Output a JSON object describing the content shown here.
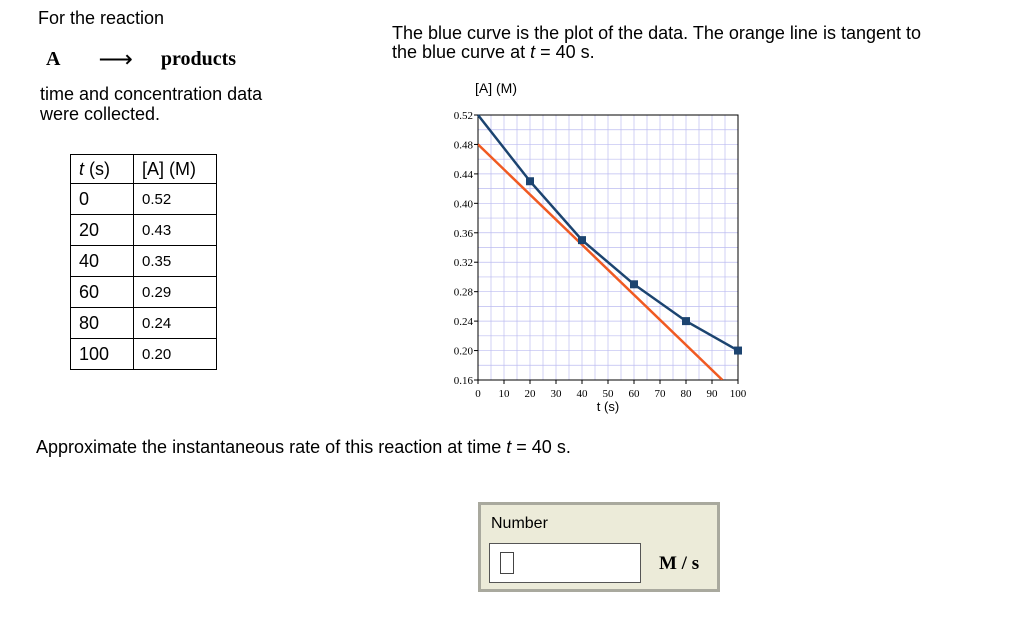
{
  "intro": "For the reaction",
  "reaction": {
    "reactant": "A",
    "arrow": "⟶",
    "product": "products"
  },
  "collected": "time and concentration data were collected.",
  "table": {
    "header_t": "t",
    "header_t_unit": " (s)",
    "header_a": "[A] (M)",
    "rows": [
      {
        "t": "0",
        "a": "0.52"
      },
      {
        "t": "20",
        "a": "0.43"
      },
      {
        "t": "40",
        "a": "0.35"
      },
      {
        "t": "60",
        "a": "0.29"
      },
      {
        "t": "80",
        "a": "0.24"
      },
      {
        "t": "100",
        "a": "0.20"
      }
    ]
  },
  "caption_line1": "The blue curve is the plot of the data. The orange line is tangent to",
  "caption_line2_pre": "the blue curve at ",
  "caption_line2_var": "t",
  "caption_line2_post": " = 40 s.",
  "question_pre": "Approximate the instantaneous rate of this reaction at time ",
  "question_var": "t",
  "question_post": " = 40 s.",
  "answer": {
    "label": "Number",
    "value": "",
    "unit": "M / s"
  },
  "colors": {
    "data_curve": "#1c4470",
    "tangent": "#f05a22",
    "grid": "#bcbcf0",
    "answer_bg": "#ecebd9"
  },
  "chart_data": {
    "type": "line",
    "ylabel": "[A] (M)",
    "xlabel": "t (s)",
    "xlim": [
      0,
      100
    ],
    "ylim": [
      0.16,
      0.52
    ],
    "x_ticks": [
      0,
      10,
      20,
      30,
      40,
      50,
      60,
      70,
      80,
      90,
      100
    ],
    "y_ticks": [
      0.16,
      0.2,
      0.24,
      0.28,
      0.32,
      0.36,
      0.4,
      0.44,
      0.48,
      0.52
    ],
    "y_tick_labels": [
      "0.16",
      "0.20",
      "0.24",
      "0.28",
      "0.32",
      "0.36",
      "0.40",
      "0.44",
      "0.48",
      "0.52"
    ],
    "grid": true,
    "series": [
      {
        "x": [
          0,
          20,
          40,
          60,
          80,
          100
        ],
        "y": [
          0.52,
          0.43,
          0.35,
          0.29,
          0.24,
          0.2
        ],
        "color": "#1c4470",
        "markers": true
      },
      {
        "x": [
          0,
          94
        ],
        "y": [
          0.48,
          0.16
        ],
        "color": "#f05a22",
        "markers": false
      }
    ]
  }
}
